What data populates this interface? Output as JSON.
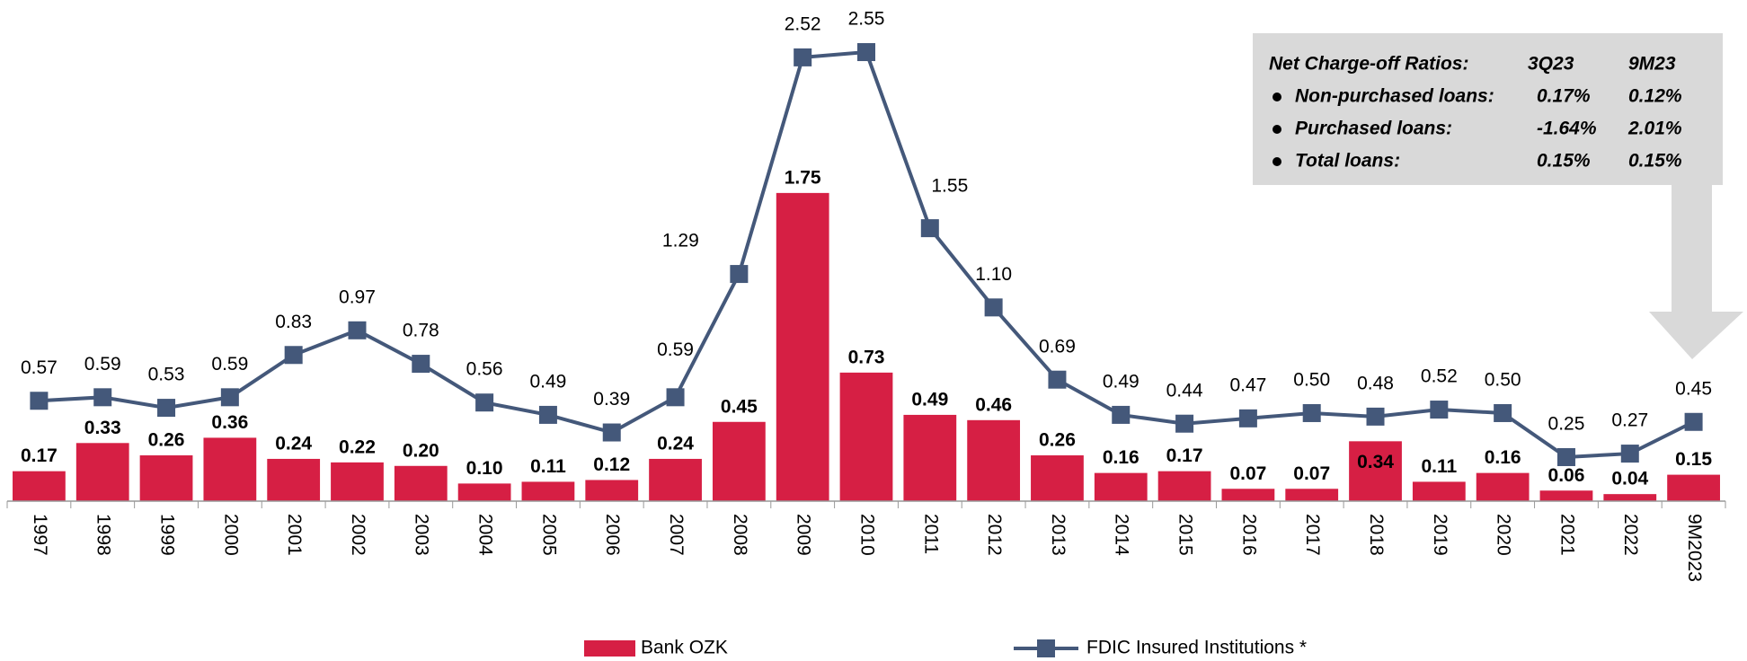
{
  "chart_data": {
    "type": "bar-line",
    "categories": [
      "1997",
      "1998",
      "1999",
      "2000",
      "2001",
      "2002",
      "2003",
      "2004",
      "2005",
      "2006",
      "2007",
      "2008",
      "2009",
      "2010",
      "2011",
      "2012",
      "2013",
      "2014",
      "2015",
      "2016",
      "2017",
      "2018",
      "2019",
      "2020",
      "2021",
      "2022",
      "9M2023"
    ],
    "series": [
      {
        "name": "Bank OZK",
        "type": "bar",
        "color": "#d61f44",
        "values": [
          0.17,
          0.33,
          0.26,
          0.36,
          0.24,
          0.22,
          0.2,
          0.1,
          0.11,
          0.12,
          0.24,
          0.45,
          1.75,
          0.73,
          0.49,
          0.46,
          0.26,
          0.16,
          0.17,
          0.07,
          0.07,
          0.34,
          0.11,
          0.16,
          0.06,
          0.04,
          0.15
        ],
        "value_labels": [
          "0.17",
          "0.33",
          "0.26",
          "0.36",
          "0.24",
          "0.22",
          "0.20",
          "0.10",
          "0.11",
          "0.12",
          "0.24",
          "0.45",
          "1.75",
          "0.73",
          "0.49",
          "0.46",
          "0.26",
          "0.16",
          "0.17",
          "0.07",
          "0.07",
          "0.34",
          "0.11",
          "0.16",
          "0.06",
          "0.04",
          "0.15"
        ]
      },
      {
        "name": "FDIC Insured Institutions *",
        "type": "line",
        "color": "#44587a",
        "values": [
          0.57,
          0.59,
          0.53,
          0.59,
          0.83,
          0.97,
          0.78,
          0.56,
          0.49,
          0.39,
          0.59,
          1.29,
          2.52,
          2.55,
          1.55,
          1.1,
          0.69,
          0.49,
          0.44,
          0.47,
          0.5,
          0.48,
          0.52,
          0.5,
          0.25,
          0.27,
          0.45
        ],
        "value_labels": [
          "0.57",
          "0.59",
          "0.53",
          "0.59",
          "0.83",
          "0.97",
          "0.78",
          "0.56",
          "0.49",
          "0.39",
          "0.59",
          "1.29",
          "2.52",
          "2.55",
          "1.55",
          "1.10",
          "0.69",
          "0.49",
          "0.44",
          "0.47",
          "0.50",
          "0.48",
          "0.52",
          "0.50",
          "0.25",
          "0.27",
          "0.45"
        ]
      }
    ],
    "ylim": [
      0,
      2.8
    ],
    "legend": "bottom",
    "inset": {
      "header": [
        "Net Charge-off Ratios:",
        "3Q23",
        "9M23"
      ],
      "rows": [
        [
          "Non-purchased loans:",
          "0.17%",
          "0.12%"
        ],
        [
          "Purchased loans:",
          "-1.64%",
          "2.01%"
        ],
        [
          "Total loans:",
          "0.15%",
          "0.15%"
        ]
      ]
    }
  }
}
